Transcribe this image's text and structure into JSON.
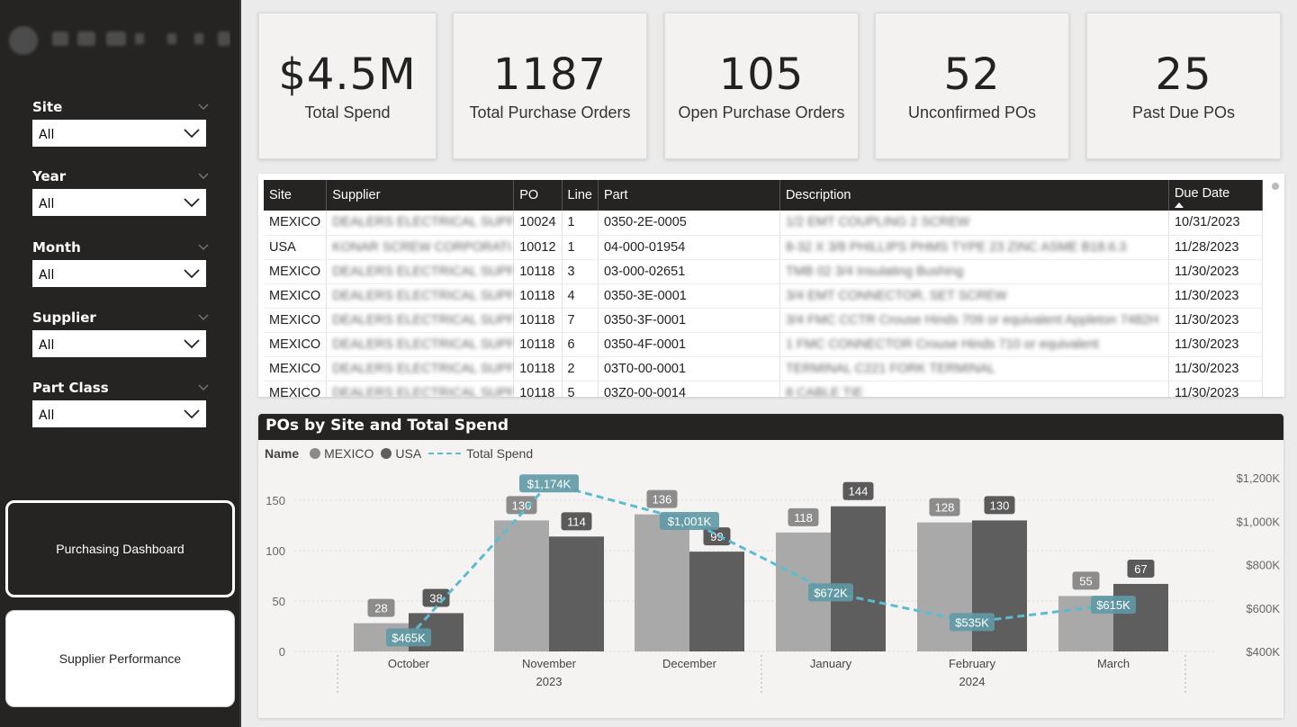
{
  "sidebar": {
    "slicers": [
      {
        "label": "Site",
        "value": "All"
      },
      {
        "label": "Year",
        "value": "All"
      },
      {
        "label": "Month",
        "value": "All"
      },
      {
        "label": "Supplier",
        "value": "All"
      },
      {
        "label": "Part Class",
        "value": "All"
      }
    ],
    "nav": [
      {
        "label": "Purchasing Dashboard"
      },
      {
        "label": "Supplier Performance"
      }
    ]
  },
  "kpis": [
    {
      "value": "$4.5M",
      "label": "Total Spend"
    },
    {
      "value": "1187",
      "label": "Total Purchase Orders"
    },
    {
      "value": "105",
      "label": "Open Purchase Orders"
    },
    {
      "value": "52",
      "label": "Unconfirmed POs"
    },
    {
      "value": "25",
      "label": "Past Due POs"
    }
  ],
  "table": {
    "columns": [
      "Site",
      "Supplier",
      "PO",
      "Line",
      "Part",
      "Description",
      "Due Date"
    ],
    "rows": [
      [
        "MEXICO",
        "DEALERS ELECTRICAL SUPPLY",
        "10024",
        "1",
        "0350-2E-0005",
        "1/2 EMT COUPLING 2 SCREW",
        "10/31/2023"
      ],
      [
        "USA",
        "KONAR SCREW CORPORATI...",
        "10012",
        "1",
        "04-000-01954",
        "8-32 X 3/8 PHILLIPS PHMS TYPE 23 ZINC ASME B18.6.3",
        "11/28/2023"
      ],
      [
        "MEXICO",
        "DEALERS ELECTRICAL SUPPLY",
        "10118",
        "3",
        "03-000-02651",
        "TMB 02 3/4 Insulating Bushing",
        "11/30/2023"
      ],
      [
        "MEXICO",
        "DEALERS ELECTRICAL SUPPLY",
        "10118",
        "4",
        "0350-3E-0001",
        "3/4 EMT CONNECTOR, SET SCREW",
        "11/30/2023"
      ],
      [
        "MEXICO",
        "DEALERS ELECTRICAL SUPPLY",
        "10118",
        "7",
        "0350-3F-0001",
        "3/4 FMC CCTR Crouse Hinds 709 or equivalent Appleton 7482H",
        "11/30/2023"
      ],
      [
        "MEXICO",
        "DEALERS ELECTRICAL SUPPLY",
        "10118",
        "6",
        "0350-4F-0001",
        "1 FMC CONNECTOR Crouse Hinds 710 or equivalent",
        "11/30/2023"
      ],
      [
        "MEXICO",
        "DEALERS ELECTRICAL SUPPLY",
        "10118",
        "2",
        "03T0-00-0001",
        "TERMINAL C221 FORK TERMINAL",
        "11/30/2023"
      ],
      [
        "MEXICO",
        "DEALERS ELECTRICAL SUPPLY",
        "10118",
        "5",
        "03Z0-00-0014",
        "8 CABLE TIE",
        "11/30/2023"
      ]
    ]
  },
  "chart_title": "POs by Site and Total Spend",
  "legend": {
    "name_label": "Name",
    "items": [
      "MEXICO",
      "USA",
      "Total Spend"
    ]
  },
  "colors": {
    "mexico": "#a9a9a9",
    "usa": "#5e5e5e",
    "spend": "#5bbcd0",
    "label_bg": "#6a9aa3"
  },
  "chart_data": {
    "type": "bar",
    "categories": [
      "October",
      "November",
      "December",
      "January",
      "February",
      "March"
    ],
    "years": [
      {
        "label": "2023"
      },
      {
        "label": "2024"
      }
    ],
    "series": [
      {
        "name": "MEXICO",
        "values": [
          28,
          130,
          136,
          118,
          128,
          55
        ]
      },
      {
        "name": "USA",
        "values": [
          38,
          114,
          99,
          144,
          130,
          67
        ]
      },
      {
        "name": "Total Spend",
        "type": "line",
        "values": [
          465,
          1174,
          1001,
          672,
          535,
          615
        ],
        "labels": [
          "$465K",
          "$1,174K",
          "$1,001K",
          "$672K",
          "$535K",
          "$615K"
        ]
      }
    ],
    "ylim": [
      0,
      160
    ],
    "y_ticks": [
      0,
      50,
      100,
      150
    ],
    "y2lim": [
      400,
      1200
    ],
    "y2_ticks": [
      {
        "value": 400,
        "label": "$400K"
      },
      {
        "value": 600,
        "label": "$600K"
      },
      {
        "value": 800,
        "label": "$800K"
      },
      {
        "value": 1000,
        "label": "$1,000K"
      },
      {
        "value": 1200,
        "label": "$1,200K"
      }
    ]
  }
}
